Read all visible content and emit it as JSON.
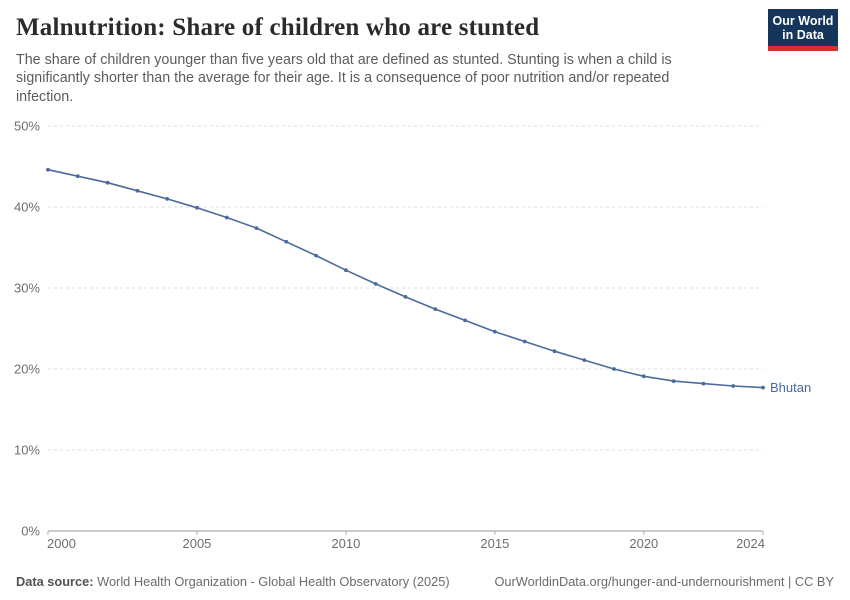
{
  "header": {
    "title": "Malnutrition: Share of children who are stunted",
    "subtitle": "The share of children younger than five years old that are defined as stunted. Stunting is when a child is significantly shorter than the average for their age. It is a consequence of poor nutrition and/or repeated infection.",
    "logo": {
      "line1": "Our World",
      "line2": "in Data",
      "bg_color": "#16355a",
      "accent_color": "#d0342c"
    }
  },
  "chart_data": {
    "type": "line",
    "title": "Malnutrition: Share of children who are stunted",
    "xlabel": "",
    "ylabel": "",
    "xlim": [
      2000,
      2024
    ],
    "ylim": [
      0,
      50
    ],
    "grid": "horizontal-dashed",
    "legend_position": "end-of-line",
    "x": [
      2000,
      2001,
      2002,
      2003,
      2004,
      2005,
      2006,
      2007,
      2008,
      2009,
      2010,
      2011,
      2012,
      2013,
      2014,
      2015,
      2016,
      2017,
      2018,
      2019,
      2020,
      2021,
      2022,
      2023,
      2024
    ],
    "series": [
      {
        "name": "Bhutan",
        "color": "#4c6a9c",
        "values": [
          44.6,
          43.8,
          43.0,
          42.0,
          41.0,
          39.9,
          38.7,
          37.4,
          35.7,
          34.0,
          32.2,
          30.5,
          28.9,
          27.4,
          26.0,
          24.6,
          23.4,
          22.2,
          21.1,
          20.0,
          19.1,
          18.5,
          18.2,
          17.9,
          17.7
        ]
      }
    ],
    "yticks": [
      {
        "value": 0,
        "label": "0%"
      },
      {
        "value": 10,
        "label": "10%"
      },
      {
        "value": 20,
        "label": "20%"
      },
      {
        "value": 30,
        "label": "30%"
      },
      {
        "value": 40,
        "label": "40%"
      },
      {
        "value": 50,
        "label": "50%"
      }
    ],
    "xticks": [
      {
        "value": 2000,
        "label": "2000"
      },
      {
        "value": 2005,
        "label": "2005"
      },
      {
        "value": 2010,
        "label": "2010"
      },
      {
        "value": 2015,
        "label": "2015"
      },
      {
        "value": 2020,
        "label": "2020"
      },
      {
        "value": 2024,
        "label": "2024"
      }
    ],
    "colors": {
      "gridline": "#dcdcdc",
      "axis_line": "#9a9a9a",
      "tick_mark": "#b0b0b0",
      "axis_text": "#6e6e6e"
    }
  },
  "footer": {
    "datasource_label": "Data source:",
    "datasource_text": "World Health Organization - Global Health Observatory (2025)",
    "link_text": "OurWorldinData.org/hunger-and-undernourishment | CC BY"
  }
}
